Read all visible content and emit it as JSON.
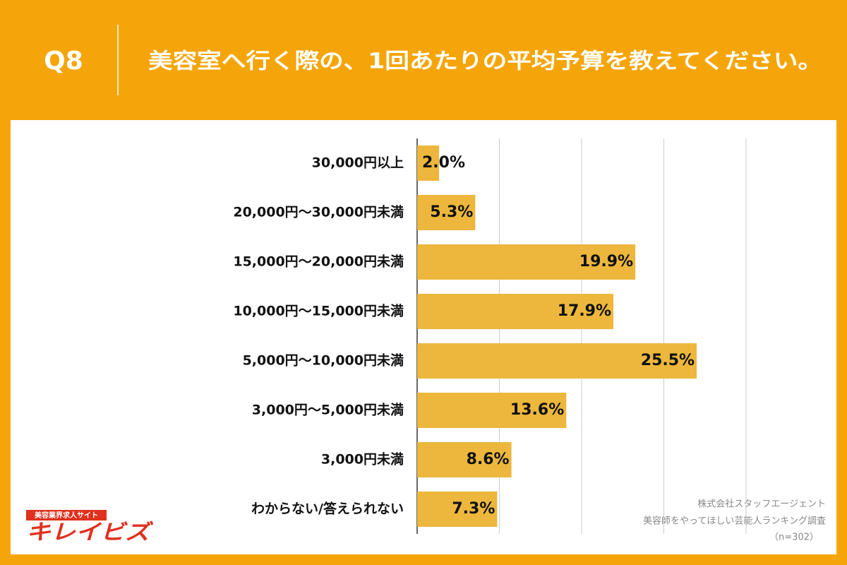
{
  "header": {
    "question": "Q8",
    "title": "美容室へ行く際の、1回あたりの平均予算を教えてください。"
  },
  "chart_data": {
    "type": "hbar",
    "categories": [
      "30,000円以上",
      "20,000円〜30,000円未満",
      "15,000円〜20,000円未満",
      "10,000円〜15,000円未満",
      "5,000円〜10,000円未満",
      "3,000円〜5,000円未満",
      "3,000円未満",
      "わからない/答えられない"
    ],
    "values": [
      2.0,
      5.3,
      19.9,
      17.9,
      25.5,
      13.6,
      8.6,
      7.3
    ],
    "value_labels": [
      "2.0%",
      "5.3%",
      "19.9%",
      "17.9%",
      "25.5%",
      "13.6%",
      "8.6%",
      "7.3%"
    ],
    "color": "#ecb73c",
    "xlim": [
      0,
      30
    ],
    "xticks": [
      0,
      7.5,
      15,
      22.5,
      30
    ],
    "show_tick_labels": false,
    "grid": true
  },
  "footer": {
    "logo_tagline": "美容業界求人サイト",
    "logo": "キレイビズ",
    "source": [
      "株式会社スタッフエージェント",
      "美容師をやってほしい芸能人ランキング調査",
      "（n=302）"
    ]
  }
}
